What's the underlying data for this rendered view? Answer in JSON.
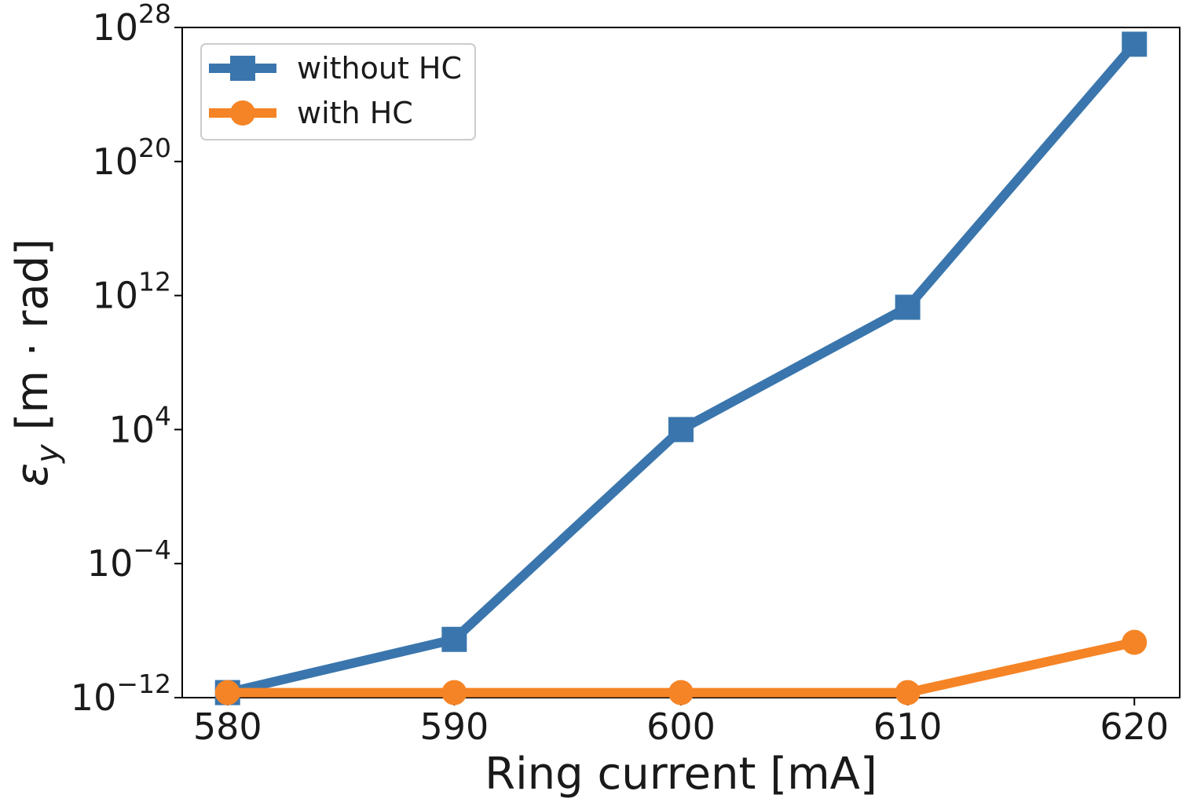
{
  "chart_data": {
    "type": "line",
    "title": "",
    "xlabel": "Ring current [mA]",
    "ylabel": {
      "prefix": "ε",
      "subscript": "y",
      "unit": " [m · rad]"
    },
    "x": [
      580,
      590,
      600,
      610,
      620
    ],
    "xticks": [
      "580",
      "590",
      "600",
      "610",
      "620"
    ],
    "xlim": [
      578,
      622
    ],
    "yscale": "log",
    "ylim": [
      1e-12,
      1e+28
    ],
    "yticks": [
      {
        "value": 1e-12,
        "base": "10",
        "exp": "−12"
      },
      {
        "value": 0.0001,
        "base": "10",
        "exp": "−4"
      },
      {
        "value": 10000.0,
        "base": "10",
        "exp": "4"
      },
      {
        "value": 1000000000000.0,
        "base": "10",
        "exp": "12"
      },
      {
        "value": 1e+20,
        "base": "10",
        "exp": "20"
      },
      {
        "value": 1e+28,
        "base": "10",
        "exp": "28"
      }
    ],
    "grid": false,
    "legend_position": "top-left",
    "series": [
      {
        "name": "without HC",
        "color": "#3a76ad",
        "marker": "square",
        "values": [
          2e-12,
          3e-09,
          10000.0,
          200000000000.0,
          1e+27
        ]
      },
      {
        "name": "with HC",
        "color": "#f58426",
        "marker": "circle",
        "values": [
          2e-12,
          2e-12,
          2e-12,
          2e-12,
          2e-09
        ]
      }
    ]
  }
}
